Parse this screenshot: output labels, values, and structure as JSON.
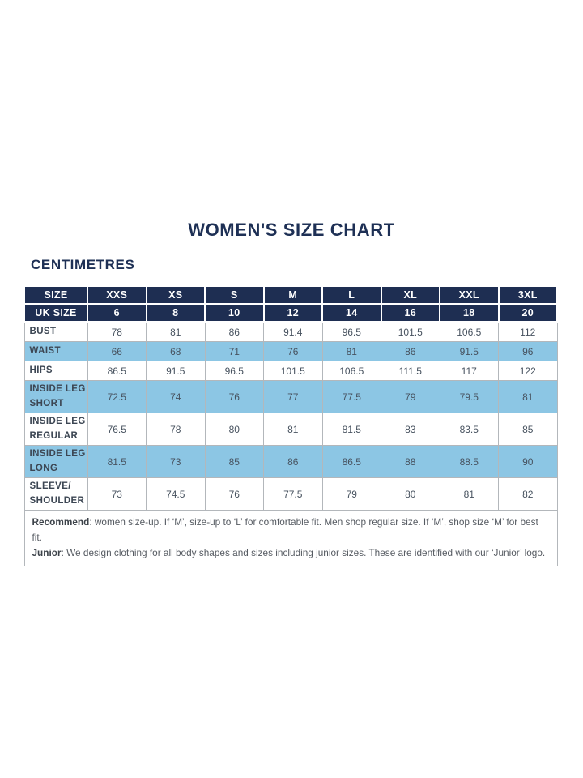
{
  "page": {
    "title": "WOMEN'S SIZE CHART",
    "unit_heading": "CENTIMETRES"
  },
  "colors": {
    "navy_header": "#1e2e52",
    "light_blue_row": "#8cc6e4",
    "title_text": "#1e3055",
    "grid_border": "#b3b7bb"
  },
  "table": {
    "header_rows": [
      {
        "cells": [
          "SIZE",
          "XXS",
          "XS",
          "S",
          "M",
          "L",
          "XL",
          "XXL",
          "3XL"
        ]
      },
      {
        "cells": [
          "UK SIZE",
          "6",
          "8",
          "10",
          "12",
          "14",
          "16",
          "18",
          "20"
        ]
      }
    ],
    "rows": [
      {
        "label_lines": [
          "BUST"
        ],
        "shaded": false,
        "tall": false,
        "values": [
          "78",
          "81",
          "86",
          "91.4",
          "96.5",
          "101.5",
          "106.5",
          "112"
        ]
      },
      {
        "label_lines": [
          "WAIST"
        ],
        "shaded": true,
        "tall": false,
        "values": [
          "66",
          "68",
          "71",
          "76",
          "81",
          "86",
          "91.5",
          "96"
        ]
      },
      {
        "label_lines": [
          "HIPS"
        ],
        "shaded": false,
        "tall": false,
        "values": [
          "86.5",
          "91.5",
          "96.5",
          "101.5",
          "106.5",
          "111.5",
          "117",
          "122"
        ]
      },
      {
        "label_lines": [
          "INSIDE LEG",
          "SHORT"
        ],
        "shaded": true,
        "tall": true,
        "values": [
          "72.5",
          "74",
          "76",
          "77",
          "77.5",
          "79",
          "79.5",
          "81"
        ]
      },
      {
        "label_lines": [
          "INSIDE LEG",
          "REGULAR"
        ],
        "shaded": false,
        "tall": true,
        "values": [
          "76.5",
          "78",
          "80",
          "81",
          "81.5",
          "83",
          "83.5",
          "85"
        ]
      },
      {
        "label_lines": [
          "INSIDE LEG",
          "LONG"
        ],
        "shaded": true,
        "tall": true,
        "values": [
          "81.5",
          "73",
          "85",
          "86",
          "86.5",
          "88",
          "88.5",
          "90"
        ]
      },
      {
        "label_lines": [
          "SLEEVE/",
          "SHOULDER"
        ],
        "shaded": false,
        "tall": true,
        "values": [
          "73",
          "74.5",
          "76",
          "77.5",
          "79",
          "80",
          "81",
          "82"
        ]
      }
    ],
    "notes": [
      {
        "lead": "Recommend",
        "rest": ": women size-up. If ‘M’, size-up to ‘L’ for comfortable fit. Men shop regular size. If ‘M’, shop size ‘M’ for best fit."
      },
      {
        "lead": "Junior",
        "rest": ": We design clothing for all body shapes and sizes including junior sizes. These are identified with our ‘Junior’ logo."
      }
    ]
  },
  "chart_data": {
    "type": "table",
    "title": "WOMEN'S SIZE CHART",
    "unit": "CENTIMETRES",
    "columns": [
      "SIZE",
      "XXS",
      "XS",
      "S",
      "M",
      "L",
      "XL",
      "XXL",
      "3XL"
    ],
    "uk_sizes": [
      6,
      8,
      10,
      12,
      14,
      16,
      18,
      20
    ],
    "rows": [
      {
        "measure": "BUST",
        "values": [
          78,
          81,
          86,
          91.4,
          96.5,
          101.5,
          106.5,
          112
        ]
      },
      {
        "measure": "WAIST",
        "values": [
          66,
          68,
          71,
          76,
          81,
          86,
          91.5,
          96
        ]
      },
      {
        "measure": "HIPS",
        "values": [
          86.5,
          91.5,
          96.5,
          101.5,
          106.5,
          111.5,
          117,
          122
        ]
      },
      {
        "measure": "INSIDE LEG SHORT",
        "values": [
          72.5,
          74,
          76,
          77,
          77.5,
          79,
          79.5,
          81
        ]
      },
      {
        "measure": "INSIDE LEG REGULAR",
        "values": [
          76.5,
          78,
          80,
          81,
          81.5,
          83,
          83.5,
          85
        ]
      },
      {
        "measure": "INSIDE LEG LONG",
        "values": [
          81.5,
          73,
          85,
          86,
          86.5,
          88,
          88.5,
          90
        ]
      },
      {
        "measure": "SLEEVE/SHOULDER",
        "values": [
          73,
          74.5,
          76,
          77.5,
          79,
          80,
          81,
          82
        ]
      }
    ],
    "notes": [
      "Recommend: women size-up. If ‘M’, size-up to ‘L’ for comfortable fit. Men shop regular size. If ‘M’, shop size ‘M’ for best fit.",
      "Junior: We design clothing for all body shapes and sizes including junior sizes. These are identified with our ‘Junior’ logo."
    ]
  }
}
